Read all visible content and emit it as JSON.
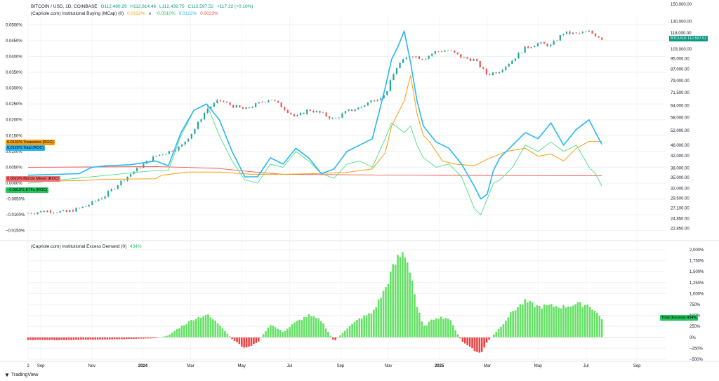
{
  "header": {
    "symbol": "BITCOIN / USD, 1D, COINBASE",
    "o": "O112,480.29",
    "h": "H112,814.46",
    "l": "L112,439.75",
    "c": "C112,597.52",
    "chg": "+117.22 (+0.10%)",
    "indicator1": "(Capriole.com) Institutional Buying (MCap) (0)",
    "ind1_v1": "0.0132%",
    "ind1_sep": "ø",
    "ind1_v2": "−0.0010%",
    "ind1_v3": "0.0122%",
    "ind1_v4": "0.0023%",
    "indicator2": "(Capriole.com) Institutional Excess Demand (0)",
    "ind2_v1": "434%"
  },
  "labels": {
    "btcusd": "BTCUSD",
    "btc_price": "112,597.52",
    "treasuries_val": "0.0132%",
    "treasuries_name": "Treasuries (ROC)",
    "total_val": "0.0122%",
    "total_name": "Total (ROC)",
    "miner_val": "0.0023%",
    "miner_name": "Bitcoin Mined (ROC)",
    "etf_val": "−0.0010%",
    "etf_name": "ETFs (ROC)",
    "excess_name": "Total (Excess)",
    "excess_val": "434%",
    "footer_brand": "TradingView"
  },
  "colors": {
    "up": "#26a69a",
    "down": "#ef5350",
    "treasuries": "#f59e0b",
    "total": "#29b6f6",
    "etfs": "#4ade80",
    "miner": "#ef5350",
    "excess_pos": "#66e066",
    "excess_neg": "#ef4444",
    "btc_tag": "#089981"
  },
  "chart_data": [
    {
      "type": "line",
      "panel": "top",
      "x_ticks": [
        "2",
        "Sep",
        "Nov",
        "2024",
        "Mar",
        "May",
        "Jul",
        "Sep",
        "Nov",
        "2025",
        "Mar",
        "May",
        "Jul",
        "Sep"
      ],
      "left_axis": {
        "ylim": [
          -0.0175,
          0.0525
        ],
        "ticks": [
          "0.0500%",
          "0.0450%",
          "0.0400%",
          "0.0350%",
          "0.0300%",
          "0.0250%",
          "0.0200%",
          "0.0150%",
          "0.0100%",
          "0.0050%",
          "0.0000%",
          "−0.0050%",
          "−0.0100%",
          "−0.0150%"
        ],
        "tick_values": [
          0.05,
          0.045,
          0.04,
          0.035,
          0.03,
          0.025,
          0.02,
          0.015,
          0.01,
          0.005,
          0,
          -0.005,
          -0.01,
          -0.015
        ]
      },
      "right_axis": {
        "scale": "log",
        "ticks": [
          "150,000.00",
          "130,000.00",
          "118,000.00",
          "103,000.00",
          "95,000.00",
          "87,000.00",
          "79,000.00",
          "71,500.00",
          "64,000.00",
          "58,000.00",
          "52,000.00",
          "46,000.00",
          "42,000.00",
          "38,000.00",
          "35,000.00",
          "32,000.00",
          "29,500.00",
          "27,100.00",
          "24,850.00",
          "22,850.00"
        ],
        "tick_values": [
          150000,
          130000,
          118000,
          103000,
          95000,
          87000,
          79000,
          71500,
          64000,
          58000,
          52000,
          46000,
          42000,
          38000,
          35000,
          32000,
          29500,
          27100,
          24850,
          22850
        ]
      },
      "btc_price": {
        "x": [
          0.0,
          0.03,
          0.06,
          0.09,
          0.12,
          0.16,
          0.2,
          0.22,
          0.24,
          0.26,
          0.28,
          0.3,
          0.32,
          0.34,
          0.36,
          0.38,
          0.4,
          0.42,
          0.44,
          0.46,
          0.48,
          0.5,
          0.52,
          0.54,
          0.56,
          0.58,
          0.6,
          0.62,
          0.64,
          0.66,
          0.68,
          0.7,
          0.72,
          0.74,
          0.76,
          0.78,
          0.8,
          0.82,
          0.84,
          0.86,
          0.88,
          0.9
        ],
        "y": [
          26000,
          26500,
          26200,
          27500,
          30000,
          36000,
          42000,
          43500,
          45500,
          52000,
          62000,
          67000,
          64000,
          62000,
          65000,
          68000,
          63000,
          58000,
          62000,
          60000,
          57000,
          61000,
          63000,
          67000,
          70000,
          90000,
          98000,
          95000,
          101000,
          102000,
          96000,
          94000,
          83000,
          86000,
          94000,
          104000,
          108000,
          106000,
          118000,
          117000,
          119000,
          112597
        ]
      },
      "series": [
        {
          "name": "Treasuries (ROC)",
          "x": [
            0.0,
            0.08,
            0.1,
            0.12,
            0.2,
            0.21,
            0.25,
            0.3,
            0.35,
            0.4,
            0.45,
            0.5,
            0.54,
            0.56,
            0.57,
            0.59,
            0.6,
            0.61,
            0.62,
            0.63,
            0.65,
            0.67,
            0.7,
            0.72,
            0.75,
            0.78,
            0.8,
            0.82,
            0.84,
            0.86,
            0.88,
            0.9
          ],
          "y": [
            0.0005,
            0.0008,
            0.001,
            0.0012,
            0.0014,
            0.0025,
            0.0035,
            0.0035,
            0.0028,
            0.0028,
            0.003,
            0.0034,
            0.0045,
            0.0095,
            0.018,
            0.026,
            0.034,
            0.022,
            0.015,
            0.013,
            0.007,
            0.006,
            0.0055,
            0.0075,
            0.01,
            0.011,
            0.0085,
            0.0092,
            0.007,
            0.011,
            0.0132,
            0.0132
          ]
        },
        {
          "name": "Total (ROC)",
          "x": [
            0.0,
            0.08,
            0.1,
            0.12,
            0.16,
            0.2,
            0.22,
            0.24,
            0.26,
            0.28,
            0.3,
            0.32,
            0.34,
            0.36,
            0.38,
            0.4,
            0.42,
            0.44,
            0.46,
            0.48,
            0.5,
            0.52,
            0.54,
            0.56,
            0.57,
            0.58,
            0.59,
            0.6,
            0.61,
            0.62,
            0.64,
            0.66,
            0.68,
            0.7,
            0.71,
            0.72,
            0.73,
            0.74,
            0.76,
            0.78,
            0.8,
            0.82,
            0.84,
            0.86,
            0.88,
            0.89,
            0.9
          ],
          "y": [
            0.0025,
            0.003,
            0.005,
            0.0054,
            0.0058,
            0.007,
            0.0055,
            0.016,
            0.023,
            0.025,
            0.02,
            0.01,
            0.002,
            0.002,
            0.008,
            0.006,
            0.011,
            0.008,
            0.003,
            0.0045,
            0.01,
            0.012,
            0.014,
            0.03,
            0.039,
            0.043,
            0.048,
            0.038,
            0.026,
            0.018,
            0.013,
            0.011,
            0.006,
            -0.001,
            -0.005,
            -0.0035,
            0.004,
            0.008,
            0.012,
            0.016,
            0.014,
            0.019,
            0.012,
            0.017,
            0.02,
            0.016,
            0.0122
          ]
        },
        {
          "name": "ETFs (ROC)",
          "x": [
            0.0,
            0.2,
            0.22,
            0.24,
            0.26,
            0.28,
            0.3,
            0.32,
            0.34,
            0.36,
            0.38,
            0.4,
            0.42,
            0.44,
            0.46,
            0.48,
            0.5,
            0.52,
            0.54,
            0.56,
            0.57,
            0.58,
            0.59,
            0.6,
            0.61,
            0.62,
            0.64,
            0.66,
            0.68,
            0.7,
            0.71,
            0.72,
            0.73,
            0.74,
            0.76,
            0.78,
            0.8,
            0.82,
            0.84,
            0.86,
            0.88,
            0.89,
            0.9
          ],
          "y": [
            0.0,
            0.004,
            0.004,
            0.015,
            0.023,
            0.025,
            0.015,
            0.007,
            0.001,
            0.0,
            0.006,
            0.005,
            0.01,
            0.007,
            0.003,
            0.0015,
            0.006,
            0.007,
            0.005,
            0.014,
            0.019,
            0.0175,
            0.016,
            0.018,
            0.012,
            0.008,
            0.005,
            0.006,
            0.002,
            -0.008,
            -0.01,
            -0.005,
            0.0,
            0.001,
            0.005,
            0.012,
            0.01,
            0.013,
            0.01,
            0.012,
            0.005,
            0.003,
            -0.001
          ]
        },
        {
          "name": "Bitcoin Mined (ROC)",
          "x": [
            0.0,
            0.1,
            0.2,
            0.26,
            0.3,
            0.35,
            0.4,
            0.6,
            0.9
          ],
          "y": [
            0.005,
            0.0051,
            0.0052,
            0.0049,
            0.0046,
            0.0036,
            0.0028,
            0.0025,
            0.0023
          ]
        }
      ]
    },
    {
      "type": "bar",
      "panel": "bottom",
      "title": "(Capriole.com) Institutional Excess Demand (0)",
      "ylim": [
        -500,
        2000
      ],
      "ticks": [
        "2,000%",
        "1,750%",
        "1,500%",
        "1,250%",
        "1,000%",
        "750%",
        "500%",
        "250%",
        "0%",
        "−250%",
        "−500%"
      ],
      "tick_values": [
        2000,
        1750,
        1500,
        1250,
        1000,
        750,
        500,
        250,
        0,
        -250,
        -500
      ],
      "series": [
        {
          "name": "Total (Excess)",
          "x": [
            0.0,
            0.05,
            0.1,
            0.15,
            0.2,
            0.22,
            0.24,
            0.26,
            0.28,
            0.3,
            0.32,
            0.34,
            0.36,
            0.38,
            0.4,
            0.42,
            0.44,
            0.46,
            0.48,
            0.5,
            0.52,
            0.54,
            0.56,
            0.57,
            0.58,
            0.59,
            0.6,
            0.61,
            0.62,
            0.64,
            0.66,
            0.68,
            0.7,
            0.71,
            0.72,
            0.74,
            0.76,
            0.78,
            0.8,
            0.82,
            0.84,
            0.86,
            0.88,
            0.9
          ],
          "y": [
            -60,
            -60,
            -50,
            -40,
            -20,
            40,
            250,
            420,
            520,
            300,
            -40,
            -250,
            -120,
            300,
            120,
            350,
            500,
            380,
            -90,
            200,
            430,
            560,
            1100,
            1500,
            1800,
            1950,
            1500,
            700,
            240,
            460,
            440,
            -80,
            -300,
            -380,
            -100,
            220,
            600,
            820,
            700,
            720,
            700,
            760,
            740,
            434
          ]
        }
      ]
    }
  ]
}
